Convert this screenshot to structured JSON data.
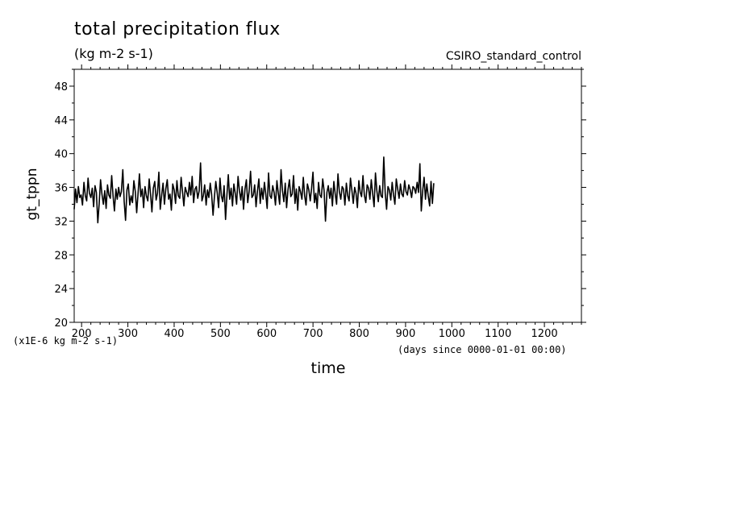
{
  "chart_data": {
    "type": "line",
    "title": "total precipitation flux",
    "subtitle": "(kg m-2 s-1)",
    "source_label": "CSIRO_standard_control",
    "ylabel": "gt_tppn",
    "xlabel": "time",
    "y_scale_note": "(x1E-6 kg m-2 s-1)",
    "x_units_note": "(days since 0000-01-01 00:00)",
    "xlim": [
      184,
      1280
    ],
    "ylim": [
      20,
      50
    ],
    "x_ticks": [
      200,
      300,
      400,
      500,
      600,
      700,
      800,
      900,
      1000,
      1100,
      1200
    ],
    "y_ticks": [
      20,
      24,
      28,
      32,
      36,
      40,
      44,
      48
    ],
    "grid": false,
    "series": [
      {
        "color": "#000000",
        "x_start": 184,
        "x_step": 3,
        "values": [
          33.4,
          35.8,
          34.2,
          36.1,
          34.8,
          35.1,
          33.9,
          36.6,
          35.0,
          34.4,
          37.1,
          35.3,
          34.8,
          35.9,
          33.7,
          36.2,
          35.4,
          31.8,
          34.1,
          36.9,
          35.2,
          34.0,
          35.6,
          33.5,
          36.3,
          35.1,
          34.7,
          37.4,
          35.0,
          33.2,
          35.8,
          34.6,
          36.0,
          34.9,
          35.5,
          38.1,
          34.3,
          32.1,
          35.7,
          36.4,
          33.9,
          35.0,
          34.2,
          36.8,
          35.5,
          33.0,
          35.3,
          37.6,
          34.9,
          35.8,
          33.6,
          36.1,
          35.0,
          34.4,
          37.0,
          35.2,
          33.1,
          35.9,
          36.7,
          34.5,
          35.3,
          37.8,
          33.4,
          35.1,
          36.5,
          34.0,
          35.8,
          36.9,
          34.6,
          35.2,
          33.3,
          36.4,
          35.7,
          34.1,
          36.8,
          35.0,
          34.7,
          37.2,
          35.5,
          33.8,
          36.0,
          35.4,
          34.9,
          36.6,
          35.1,
          37.3,
          34.2,
          35.8,
          36.1,
          34.7,
          35.6,
          38.9,
          34.4,
          35.0,
          36.3,
          33.9,
          35.7,
          34.8,
          36.5,
          35.2,
          32.7,
          34.9,
          36.7,
          35.4,
          33.6,
          37.1,
          35.0,
          34.3,
          36.2,
          32.2,
          35.1,
          37.5,
          34.6,
          35.9,
          33.8,
          36.4,
          35.3,
          34.0,
          37.3,
          35.6,
          34.5,
          36.1,
          33.4,
          35.8,
          36.9,
          34.2,
          35.5,
          37.9,
          34.8,
          35.1,
          36.3,
          33.7,
          35.6,
          37.0,
          34.1,
          35.9,
          34.6,
          36.6,
          35.2,
          33.5,
          37.7,
          35.0,
          34.7,
          36.2,
          35.4,
          33.9,
          36.8,
          35.3,
          34.0,
          38.1,
          35.6,
          34.3,
          36.5,
          33.6,
          35.7,
          36.9,
          34.9,
          35.2,
          37.4,
          34.1,
          35.8,
          33.3,
          36.1,
          35.5,
          34.6,
          37.2,
          35.0,
          33.9,
          36.4,
          35.7,
          34.4,
          35.9,
          37.8,
          34.2,
          35.3,
          33.5,
          36.6,
          35.1,
          34.8,
          37.0,
          35.6,
          32.0,
          35.4,
          36.2,
          34.7,
          35.9,
          33.8,
          36.7,
          35.2,
          34.0,
          37.6,
          35.5,
          34.6,
          36.1,
          35.8,
          33.9,
          36.5,
          35.0,
          34.4,
          37.1,
          35.7,
          34.1,
          36.0,
          35.3,
          33.6,
          36.8,
          35.4,
          34.9,
          37.4,
          35.1,
          34.2,
          36.3,
          35.9,
          34.6,
          36.9,
          35.2,
          33.7,
          37.7,
          35.6,
          34.3,
          36.2,
          35.0,
          34.8,
          39.6,
          35.3,
          33.4,
          36.1,
          35.7,
          34.5,
          36.6,
          35.1,
          34.0,
          37.0,
          35.8,
          34.7,
          36.4,
          35.2,
          34.9,
          36.8,
          35.5,
          35.1,
          36.3,
          35.7,
          34.8,
          36.1,
          35.9,
          35.3,
          36.6,
          35.4,
          38.8,
          33.2,
          35.6,
          37.2,
          34.6,
          36.4,
          35.0,
          33.8,
          36.7,
          34.1,
          36.5
        ]
      }
    ]
  }
}
